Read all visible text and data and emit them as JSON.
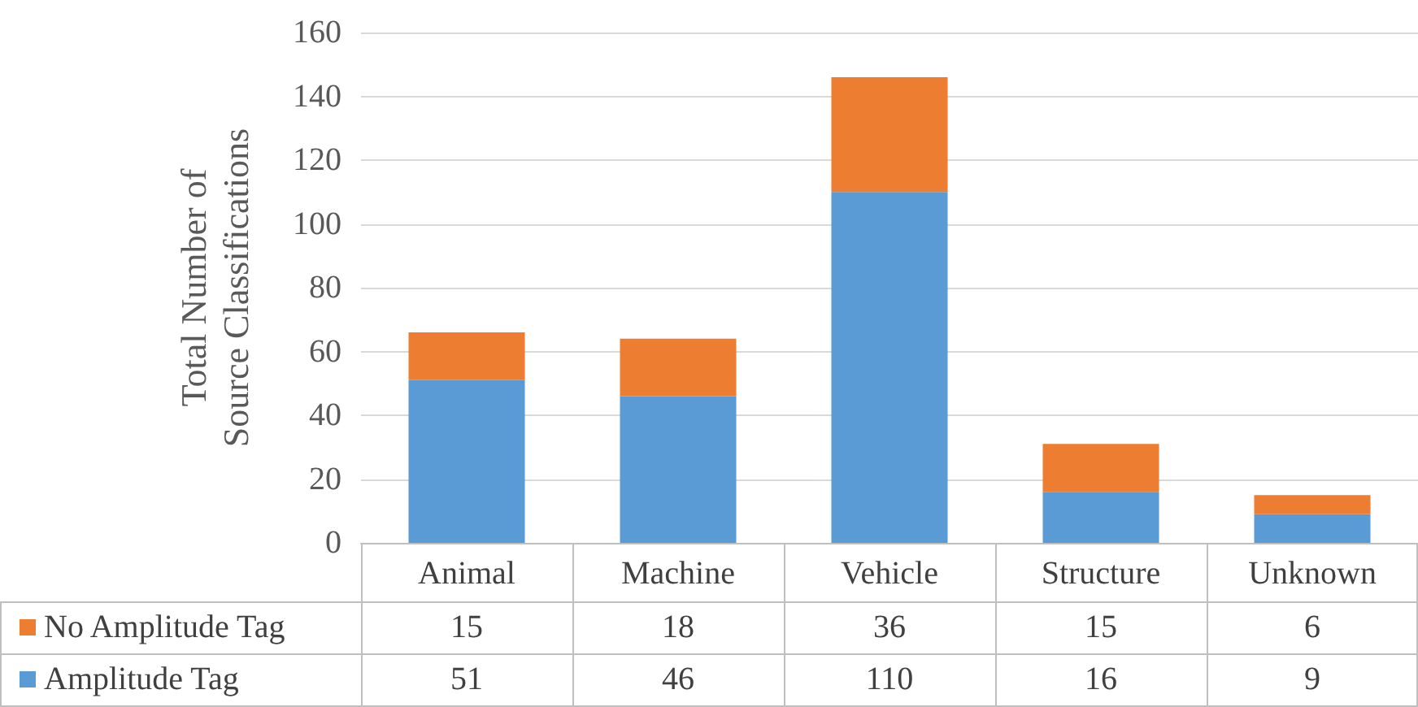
{
  "chart_data": {
    "type": "bar",
    "stacked": true,
    "ylabel": "Total Number of Source Classifications",
    "categories": [
      "Animal",
      "Machine",
      "Vehicle",
      "Structure",
      "Unknown"
    ],
    "series": [
      {
        "name": "Amplitude Tag",
        "color": "#5b9bd5",
        "values": [
          51,
          46,
          110,
          16,
          9
        ]
      },
      {
        "name": "No Amplitude Tag",
        "color": "#ed7d31",
        "values": [
          15,
          18,
          36,
          15,
          6
        ]
      }
    ],
    "ylim": [
      0,
      160
    ],
    "yticks": [
      0,
      20,
      40,
      60,
      80,
      100,
      120,
      140,
      160
    ],
    "grid": "y",
    "legend": "bottom",
    "data_labels": true
  }
}
